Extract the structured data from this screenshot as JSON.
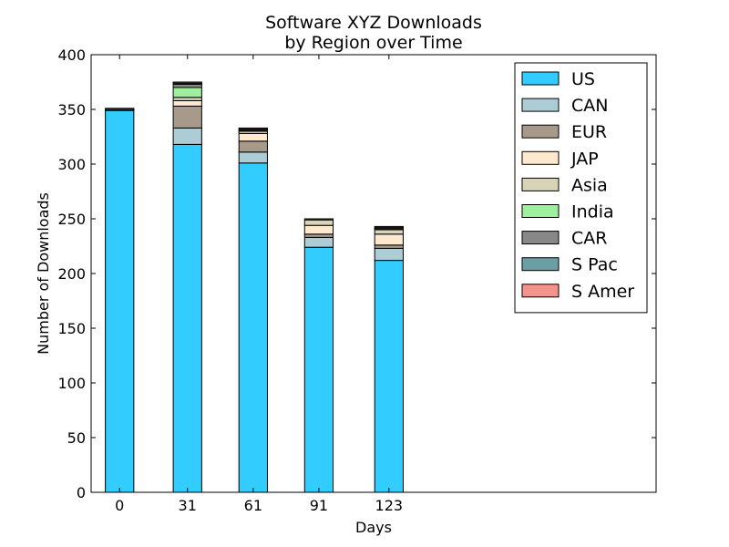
{
  "chart_data": {
    "type": "bar",
    "stacked": true,
    "title": "Software XYZ Downloads\nby Region over Time",
    "xlabel": "Days",
    "ylabel": "Number of Downloads",
    "x": [
      0,
      31,
      61,
      91,
      123
    ],
    "xlim": [
      -13,
      245
    ],
    "ylim": [
      0,
      400
    ],
    "yticks": [
      0,
      50,
      100,
      150,
      200,
      250,
      300,
      350,
      400
    ],
    "bar_width": 13,
    "legend_position": "top-right",
    "grid": false,
    "series": [
      {
        "name": "US",
        "color": "#33ccff",
        "values": [
          349,
          318,
          301,
          224,
          212
        ]
      },
      {
        "name": "CAN",
        "color": "#acccd6",
        "values": [
          0,
          15,
          10,
          9,
          11
        ]
      },
      {
        "name": "EUR",
        "color": "#a89a8a",
        "values": [
          0,
          20,
          10,
          3,
          3
        ]
      },
      {
        "name": "JAP",
        "color": "#ffe9ce",
        "values": [
          0,
          5,
          7,
          8,
          10
        ]
      },
      {
        "name": "Asia",
        "color": "#d8d4b8",
        "values": [
          0,
          3,
          2,
          5,
          4
        ]
      },
      {
        "name": "India",
        "color": "#9ef09e",
        "values": [
          0,
          9,
          0,
          0,
          0
        ]
      },
      {
        "name": "CAR",
        "color": "#888888",
        "values": [
          0,
          3,
          1,
          1,
          1
        ]
      },
      {
        "name": "S Pac",
        "color": "#6a9fa3",
        "values": [
          1,
          1,
          1,
          0,
          1
        ]
      },
      {
        "name": "S Amer",
        "color": "#f4928c",
        "values": [
          1,
          1,
          1,
          0,
          1
        ]
      }
    ]
  }
}
